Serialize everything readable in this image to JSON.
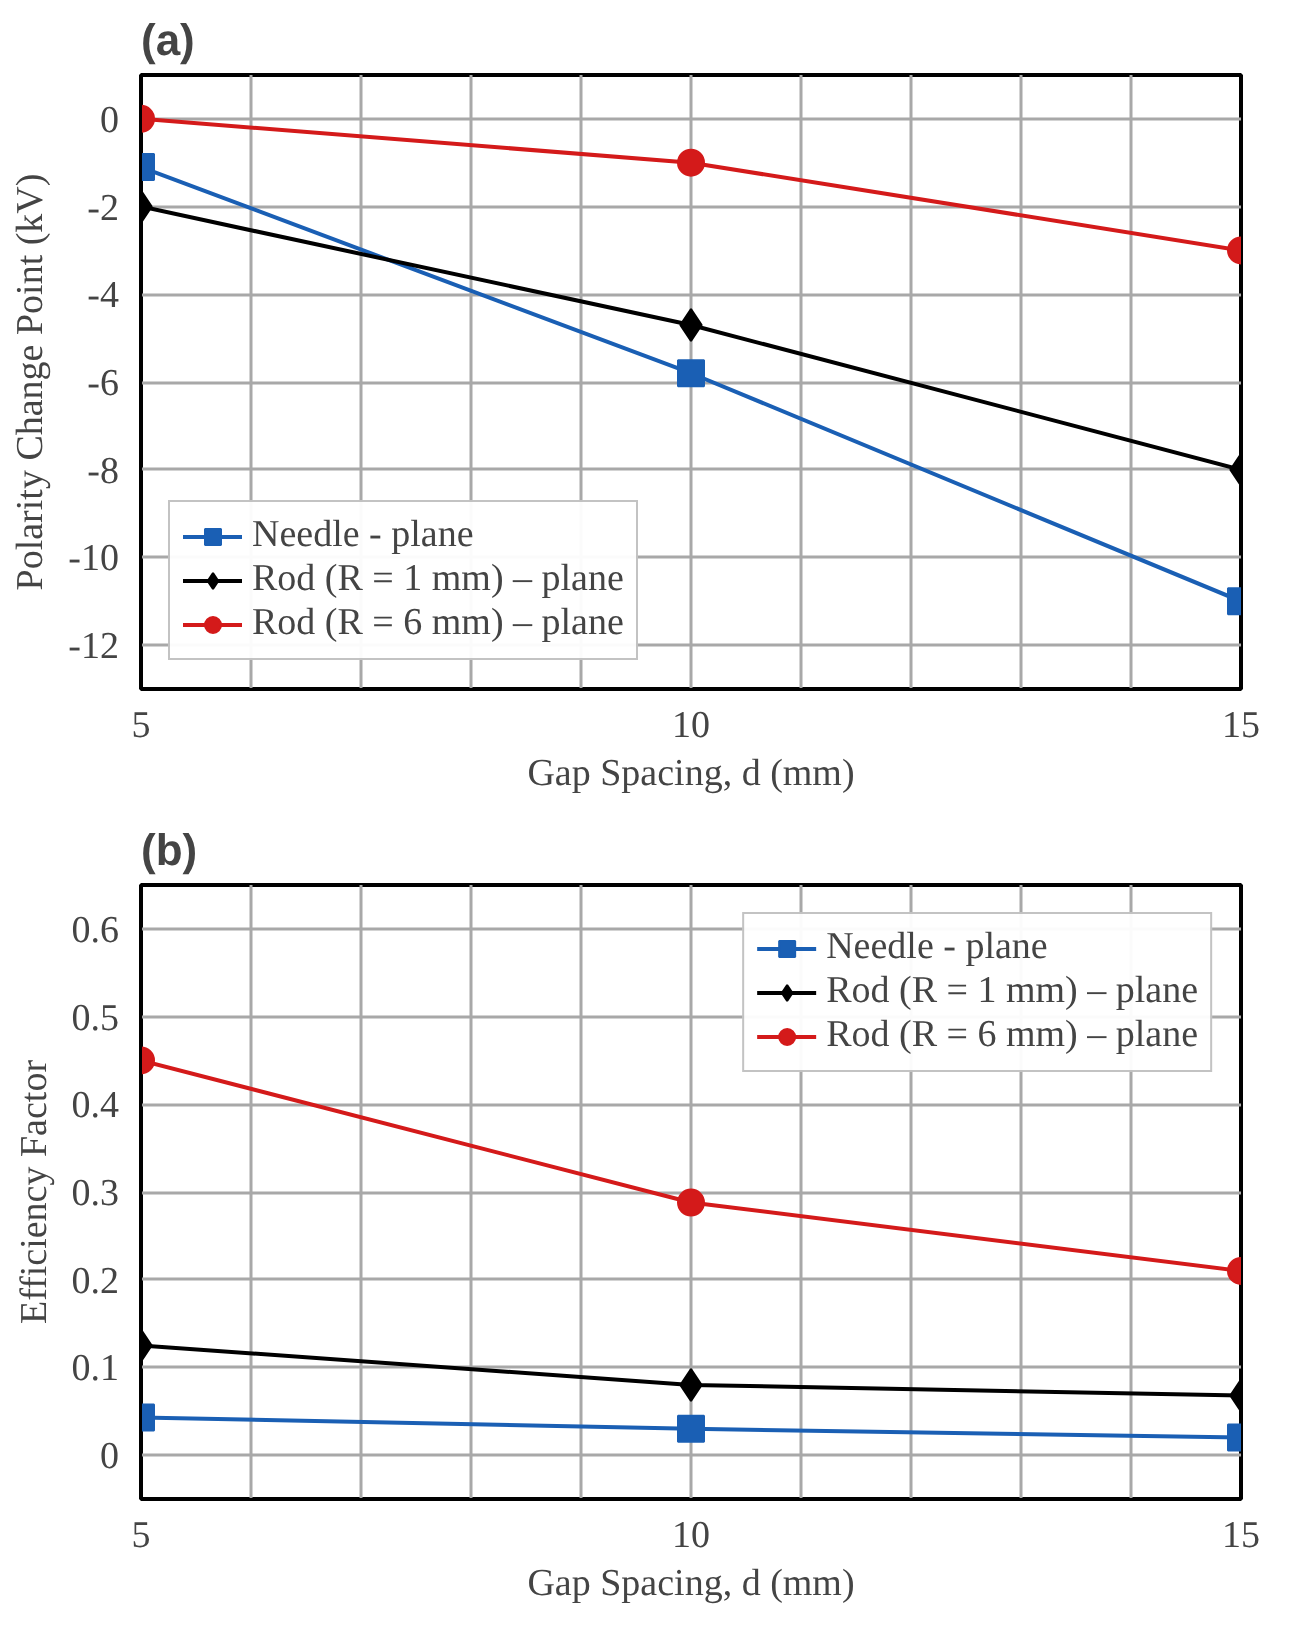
{
  "chart_data": [
    {
      "type": "line",
      "title": "(a)",
      "xlabel": "Gap Spacing, d (mm)",
      "ylabel": "Polarity Change Point (kV)",
      "x": [
        5,
        10,
        15
      ],
      "xlim": [
        5,
        15
      ],
      "xticks": [
        5,
        {
          "value": 6,
          "label": null
        },
        {
          "value": 7,
          "label": null
        },
        {
          "value": 8,
          "label": null
        },
        {
          "value": 9,
          "label": null
        },
        10,
        {
          "value": 11,
          "label": null
        },
        {
          "value": 12,
          "label": null
        },
        {
          "value": 13,
          "label": null
        },
        {
          "value": 14,
          "label": null
        },
        15
      ],
      "ylim": [
        -13,
        1
      ],
      "yticks": [
        -12,
        -10,
        -8,
        -6,
        -4,
        -2,
        0
      ],
      "grid": true,
      "legend": "bottom left",
      "line_style": "solid",
      "series": [
        {
          "name": "Needle - plane",
          "color": "#1a5fb4",
          "marker": "square",
          "values": [
            -1.1,
            -5.8,
            -11
          ]
        },
        {
          "name": "Rod (R = 1 mm) – plane",
          "color": "#000000",
          "marker": "diamond",
          "values": [
            -2,
            -4.7,
            -8
          ]
        },
        {
          "name": "Rod (R = 6 mm) – plane",
          "color": "#d41a1a",
          "marker": "circle",
          "values": [
            0,
            -1,
            -3
          ]
        }
      ]
    },
    {
      "type": "line",
      "title": "(b)",
      "xlabel": "Gap Spacing, d (mm)",
      "ylabel": "Efficiency Factor",
      "x": [
        5,
        10,
        15
      ],
      "xlim": [
        5,
        15
      ],
      "xticks": [
        5,
        {
          "value": 6,
          "label": null
        },
        {
          "value": 7,
          "label": null
        },
        {
          "value": 8,
          "label": null
        },
        {
          "value": 9,
          "label": null
        },
        10,
        {
          "value": 11,
          "label": null
        },
        {
          "value": 12,
          "label": null
        },
        {
          "value": 13,
          "label": null
        },
        {
          "value": 14,
          "label": null
        },
        15
      ],
      "ylim": [
        -0.05,
        0.65
      ],
      "yticks": [
        0,
        0.1,
        0.2,
        0.3,
        0.4,
        0.5,
        0.6
      ],
      "grid": true,
      "legend": "top right",
      "line_style": "solid",
      "series": [
        {
          "name": "Needle - plane",
          "color": "#1a5fb4",
          "marker": "square",
          "values": [
            0.043,
            0.03,
            0.02
          ]
        },
        {
          "name": "Rod (R = 1 mm) – plane",
          "color": "#000000",
          "marker": "diamond",
          "values": [
            0.125,
            0.08,
            0.068
          ]
        },
        {
          "name": "Rod (R = 6 mm) – plane",
          "color": "#d41a1a",
          "marker": "circle",
          "values": [
            0.45,
            0.288,
            0.21
          ]
        }
      ]
    }
  ]
}
